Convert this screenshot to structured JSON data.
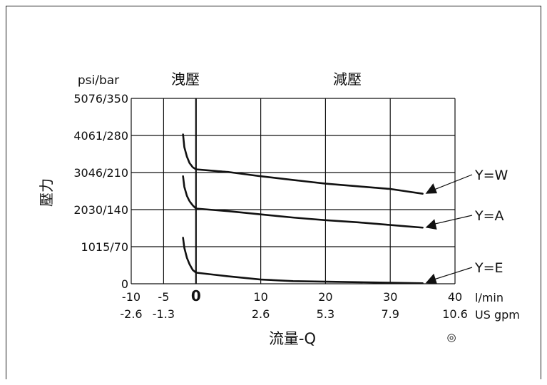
{
  "chart_data": {
    "type": "line",
    "header_left": "psi/bar",
    "header_relief": "洩壓",
    "header_reducing": "減壓",
    "ylabel": "壓力",
    "xlabel": "流量-Q",
    "y_tick_labels": [
      "0",
      "1015/70",
      "2030/140",
      "3046/210",
      "4061/280",
      "5076/350"
    ],
    "y_ticks_bar": [
      0,
      70,
      140,
      210,
      280,
      350
    ],
    "x_tick_labels_lmin": [
      "-10",
      "-5",
      "0",
      "10",
      "20",
      "30",
      "40"
    ],
    "x_ticks_lmin": [
      -10,
      -5,
      0,
      10,
      20,
      30,
      40
    ],
    "x_tick_labels_gpm": [
      "-2.6",
      "-1.3",
      "",
      "2.6",
      "5.3",
      "7.9",
      "10.6"
    ],
    "unit_lmin": "l/min",
    "unit_gpm": "US gpm",
    "symbol": "◎",
    "xlim": [
      -10,
      40
    ],
    "ylim": [
      0,
      350
    ],
    "grid": true,
    "series": [
      {
        "name": "Y=W",
        "x": [
          -2,
          -1.8,
          -1.4,
          -1,
          -0.5,
          0,
          5,
          10,
          15,
          20,
          25,
          30,
          35
        ],
        "y": [
          282,
          258,
          240,
          228,
          220,
          216,
          211,
          203,
          196,
          189,
          184,
          179,
          170
        ]
      },
      {
        "name": "Y=A",
        "x": [
          -2,
          -1.8,
          -1.4,
          -1,
          -0.5,
          0,
          5,
          10,
          15,
          20,
          25,
          30,
          35
        ],
        "y": [
          203,
          183,
          166,
          156,
          148,
          142,
          137,
          131,
          125,
          120,
          116,
          111,
          106
        ]
      },
      {
        "name": "Y=E",
        "x": [
          -2,
          -1.8,
          -1.4,
          -1,
          -0.5,
          0,
          5,
          10,
          15,
          20,
          25,
          30,
          35
        ],
        "y": [
          87,
          68,
          49,
          37,
          26,
          21,
          14,
          8,
          5,
          4,
          3,
          2,
          1
        ]
      }
    ]
  }
}
